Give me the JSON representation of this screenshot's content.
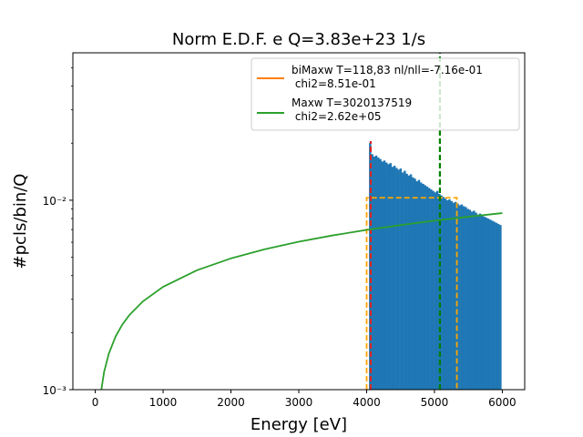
{
  "chart_data": {
    "type": "bar",
    "title": "Norm E.D.F.  e Q=3.83e+23 1/s",
    "xlabel": "Energy [eV]",
    "ylabel": "#pcls/bin/Q",
    "xlim": [
      -330,
      6330
    ],
    "ylim": [
      0.001,
      0.06
    ],
    "yscale": "log",
    "x_ticks": [
      0,
      1000,
      2000,
      3000,
      4000,
      5000,
      6000
    ],
    "x_tick_labels": [
      "0",
      "1000",
      "2000",
      "3000",
      "4000",
      "5000",
      "6000"
    ],
    "y_ticks": [
      0.001,
      0.01
    ],
    "y_tick_labels": [
      "10⁻³",
      "10⁻²"
    ],
    "grid": false,
    "legend_position": "top-right",
    "histogram": {
      "color": "#1f77b4",
      "bin_width": 30,
      "bins": [
        {
          "x": 4050,
          "y": 0.02
        },
        {
          "x": 4080,
          "y": 0.0175
        },
        {
          "x": 4110,
          "y": 0.017
        },
        {
          "x": 4140,
          "y": 0.0172
        },
        {
          "x": 4170,
          "y": 0.0168
        },
        {
          "x": 4200,
          "y": 0.0165
        },
        {
          "x": 4230,
          "y": 0.016
        },
        {
          "x": 4260,
          "y": 0.0162
        },
        {
          "x": 4290,
          "y": 0.0158
        },
        {
          "x": 4320,
          "y": 0.0155
        },
        {
          "x": 4350,
          "y": 0.0157
        },
        {
          "x": 4380,
          "y": 0.015
        },
        {
          "x": 4410,
          "y": 0.0152
        },
        {
          "x": 4440,
          "y": 0.0148
        },
        {
          "x": 4470,
          "y": 0.0145
        },
        {
          "x": 4500,
          "y": 0.0147
        },
        {
          "x": 4530,
          "y": 0.014
        },
        {
          "x": 4560,
          "y": 0.0143
        },
        {
          "x": 4590,
          "y": 0.0138
        },
        {
          "x": 4620,
          "y": 0.0135
        },
        {
          "x": 4650,
          "y": 0.0137
        },
        {
          "x": 4680,
          "y": 0.0132
        },
        {
          "x": 4710,
          "y": 0.013
        },
        {
          "x": 4740,
          "y": 0.0126
        },
        {
          "x": 4770,
          "y": 0.0128
        },
        {
          "x": 4800,
          "y": 0.0124
        },
        {
          "x": 4830,
          "y": 0.0122
        },
        {
          "x": 4860,
          "y": 0.012
        },
        {
          "x": 4890,
          "y": 0.0118
        },
        {
          "x": 4920,
          "y": 0.0116
        },
        {
          "x": 4950,
          "y": 0.0114
        },
        {
          "x": 4980,
          "y": 0.0112
        },
        {
          "x": 5010,
          "y": 0.011
        },
        {
          "x": 5040,
          "y": 0.0112
        },
        {
          "x": 5070,
          "y": 0.0108
        },
        {
          "x": 5100,
          "y": 0.0106
        },
        {
          "x": 5130,
          "y": 0.0104
        },
        {
          "x": 5160,
          "y": 0.0102
        },
        {
          "x": 5190,
          "y": 0.01
        },
        {
          "x": 5220,
          "y": 0.0101
        },
        {
          "x": 5250,
          "y": 0.0099
        },
        {
          "x": 5280,
          "y": 0.0097
        },
        {
          "x": 5310,
          "y": 0.0098
        },
        {
          "x": 5340,
          "y": 0.0096
        },
        {
          "x": 5370,
          "y": 0.0094
        },
        {
          "x": 5400,
          "y": 0.0095
        },
        {
          "x": 5430,
          "y": 0.0093
        },
        {
          "x": 5460,
          "y": 0.0092
        },
        {
          "x": 5490,
          "y": 0.009
        },
        {
          "x": 5520,
          "y": 0.0089
        },
        {
          "x": 5550,
          "y": 0.0087
        },
        {
          "x": 5580,
          "y": 0.0088
        },
        {
          "x": 5610,
          "y": 0.0086
        },
        {
          "x": 5640,
          "y": 0.0084
        },
        {
          "x": 5670,
          "y": 0.0085
        },
        {
          "x": 5700,
          "y": 0.0083
        },
        {
          "x": 5730,
          "y": 0.0082
        },
        {
          "x": 5760,
          "y": 0.0081
        },
        {
          "x": 5790,
          "y": 0.008
        },
        {
          "x": 5820,
          "y": 0.0079
        },
        {
          "x": 5850,
          "y": 0.0078
        },
        {
          "x": 5880,
          "y": 0.0077
        },
        {
          "x": 5910,
          "y": 0.0076
        },
        {
          "x": 5940,
          "y": 0.0075
        },
        {
          "x": 5970,
          "y": 0.0074
        }
      ]
    },
    "series": [
      {
        "name": "biMaxw T=118,83 nl/nll=-7.16e-01\n chi2=8.51e-01",
        "legend_lines": [
          "biMaxw T=118,83 nl/nll=-7.16e-01",
          " chi2=8.51e-01"
        ],
        "color": "#ff7f0e",
        "style": "solid",
        "points": []
      },
      {
        "name": "Maxw T=3020137519\n chi2=2.62e+05",
        "legend_lines": [
          "Maxw T=3020137519",
          " chi2=2.62e+05"
        ],
        "color": "#2ca02c",
        "style": "solid",
        "points": [
          [
            90,
            0.001
          ],
          [
            130,
            0.00124
          ],
          [
            200,
            0.00155
          ],
          [
            300,
            0.00191
          ],
          [
            400,
            0.00221
          ],
          [
            500,
            0.00247
          ],
          [
            700,
            0.00292
          ],
          [
            1000,
            0.00349
          ],
          [
            1500,
            0.00427
          ],
          [
            2000,
            0.00493
          ],
          [
            2500,
            0.00551
          ],
          [
            3000,
            0.00604
          ],
          [
            3500,
            0.00652
          ],
          [
            4000,
            0.00697
          ],
          [
            4500,
            0.00739
          ],
          [
            5000,
            0.0078
          ],
          [
            5500,
            0.00818
          ],
          [
            6000,
            0.00855
          ]
        ]
      }
    ],
    "overlays": [
      {
        "kind": "dashed-box",
        "color": "#ffa500",
        "x0": 4000,
        "x1": 5330,
        "y0": 0.001,
        "y1": 0.0103
      },
      {
        "kind": "dashed-vline",
        "color": "#d62728",
        "x": 4060,
        "y0": 0.001,
        "y1": 0.0205
      },
      {
        "kind": "dashed-vline",
        "color": "#008000",
        "x": 5080,
        "y0": 0.001,
        "y1": 0.06
      }
    ]
  }
}
